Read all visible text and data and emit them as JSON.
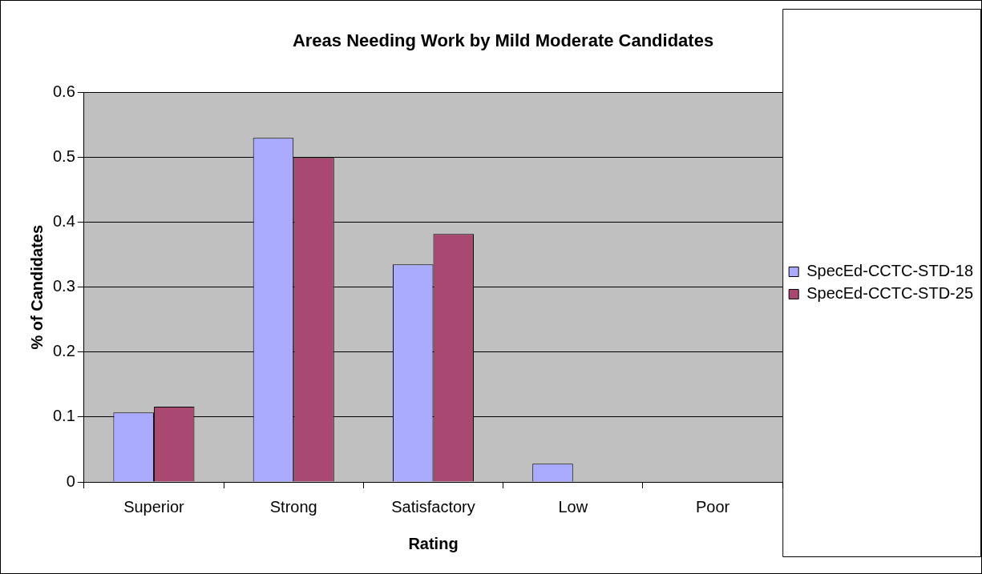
{
  "chart_data": {
    "type": "bar",
    "title": "Areas Needing Work by Mild Moderate Candidates",
    "xlabel": "Rating",
    "ylabel": "% of Candidates",
    "categories": [
      "Superior",
      "Strong",
      "Satisfactory",
      "Low",
      "Poor"
    ],
    "series": [
      {
        "name": "SpecEd-CCTC-STD-18",
        "color": "#aaaaff",
        "values": [
          0.107,
          0.53,
          0.335,
          0.028,
          0
        ]
      },
      {
        "name": "SpecEd-CCTC-STD-25",
        "color": "#a94871",
        "values": [
          0.116,
          0.5,
          0.382,
          0,
          0
        ]
      }
    ],
    "ylim": [
      0,
      0.6
    ],
    "yticks": [
      0,
      0.1,
      0.2,
      0.3,
      0.4,
      0.5,
      0.6
    ],
    "grid": "y",
    "legend": "right"
  }
}
